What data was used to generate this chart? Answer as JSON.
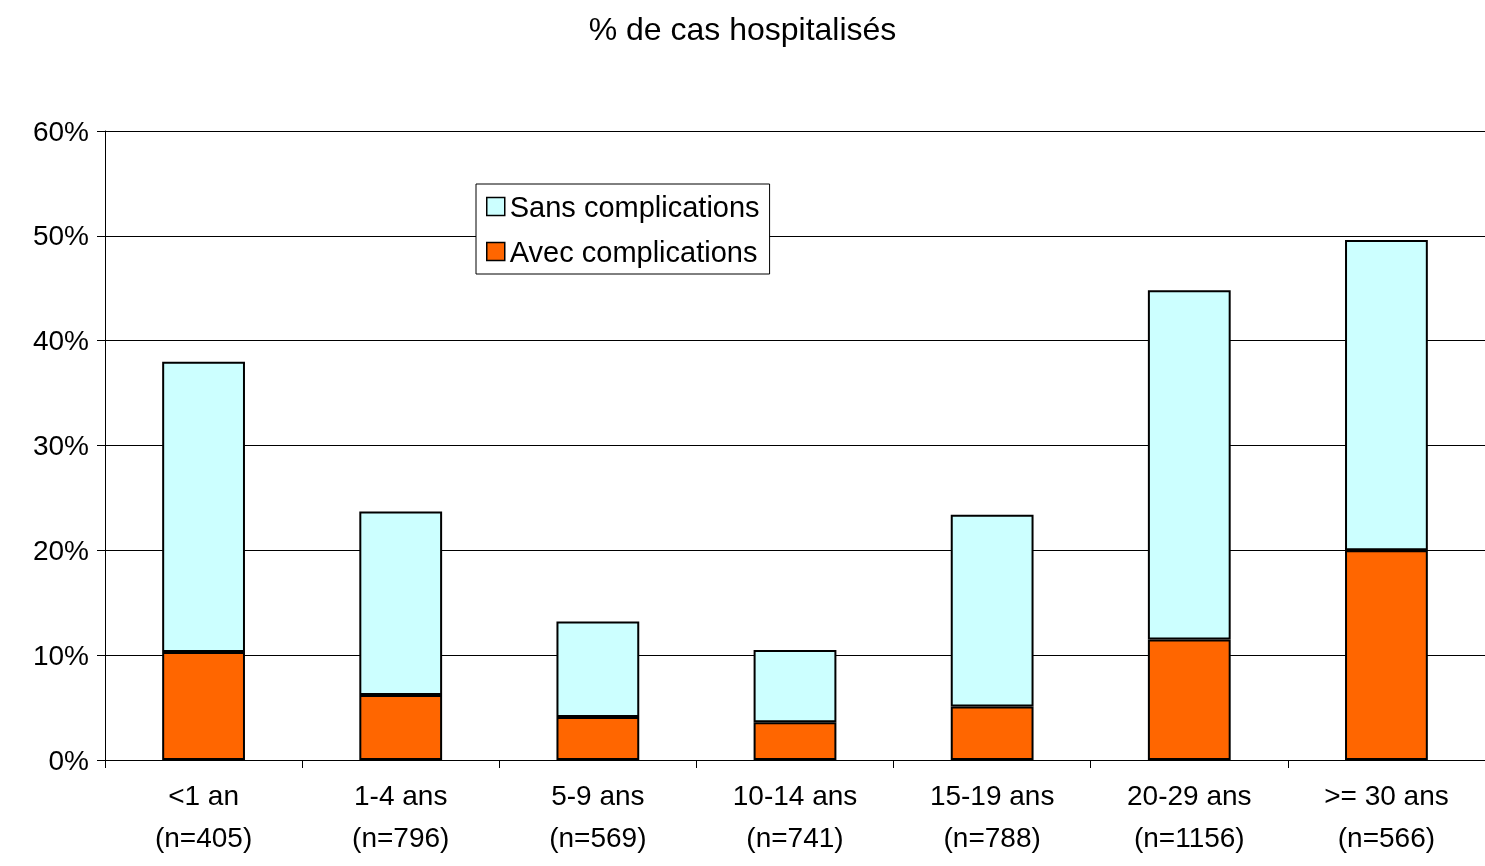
{
  "chart_data": {
    "type": "bar",
    "title": "% de cas hospitalisés",
    "stacked": true,
    "categories": [
      "<1 an\n(n=405)",
      "1-4 ans\n(n=796)",
      "5-9 ans\n(n=569)",
      "10-14 ans\n(n=741)",
      "15-19 ans\n(n=788)",
      "20-29 ans\n(n=1156)",
      ">= 30 ans\n(n=566)"
    ],
    "series": [
      {
        "name": "Avec complications",
        "color": "#ff6600",
        "values": [
          10.3,
          6.2,
          4.1,
          3.6,
          5.1,
          11.5,
          20.0
        ]
      },
      {
        "name": "Sans complications",
        "color": "#ccffff",
        "values": [
          27.7,
          17.5,
          9.1,
          6.9,
          18.3,
          33.3,
          29.6
        ]
      }
    ],
    "ylim": [
      0,
      60
    ],
    "yticks": [
      {
        "value": 0,
        "label": "0%"
      },
      {
        "value": 10,
        "label": "10%"
      },
      {
        "value": 20,
        "label": "20%"
      },
      {
        "value": 30,
        "label": "30%"
      },
      {
        "value": 40,
        "label": "40%"
      },
      {
        "value": 50,
        "label": "50%"
      },
      {
        "value": 60,
        "label": "60%"
      }
    ],
    "grid": "y",
    "legend": "top"
  }
}
